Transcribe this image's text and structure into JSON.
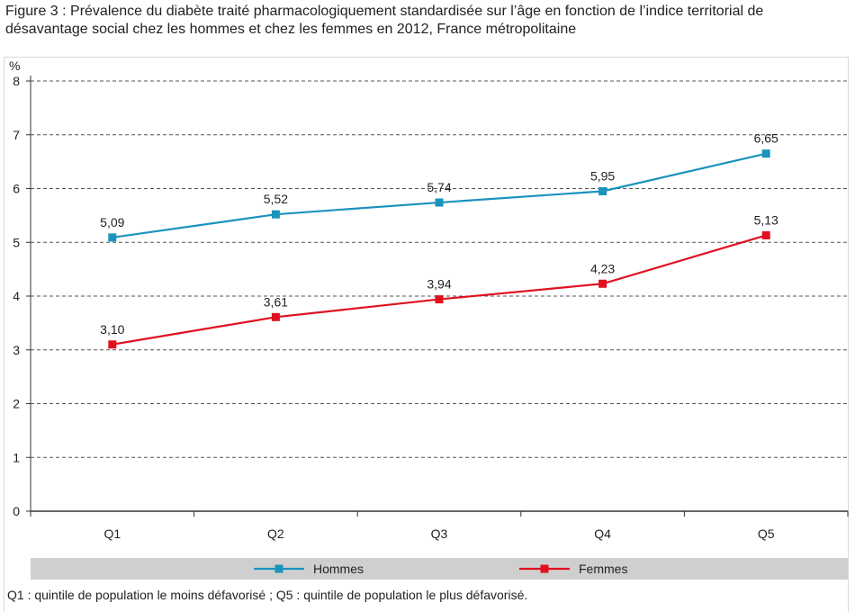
{
  "title": "Figure 3 : Prévalence du diabète traité pharmacologiquement standardisée sur l’âge en fonction de l’indice territorial de désavantage social chez les hommes et chez les femmes en 2012, France métropolitaine",
  "note": "Q1 : quintile de population le moins défavorisé ; Q5 : quintile de population le plus défavorisé.",
  "chart_data": {
    "type": "line",
    "title": "Figure 3 : Prévalence du diabète traité pharmacologiquement standardisée sur l’âge en fonction de l’indice territorial de désavantage social chez les hommes et chez les femmes en 2012, France métropolitaine",
    "categories": [
      "Q1",
      "Q2",
      "Q3",
      "Q4",
      "Q5"
    ],
    "ylabel": "%",
    "xlabel": "",
    "ylim": [
      0,
      8
    ],
    "yticks": [
      "0",
      "1",
      "2",
      "3",
      "4",
      "5",
      "6",
      "7",
      "8"
    ],
    "grid": true,
    "legend_position": "bottom",
    "series": [
      {
        "name": "Hommes",
        "color": "#1a93bd",
        "values": [
          5.09,
          5.52,
          5.74,
          5.95,
          6.65
        ],
        "labels": [
          "5,09",
          "5,52",
          "5,74",
          "5,95",
          "6,65"
        ]
      },
      {
        "name": "Femmes",
        "color": "#e0101f",
        "values": [
          3.1,
          3.61,
          3.94,
          4.23,
          5.13
        ],
        "labels": [
          "3,10",
          "3,61",
          "3,94",
          "4,23",
          "5,13"
        ]
      }
    ]
  }
}
